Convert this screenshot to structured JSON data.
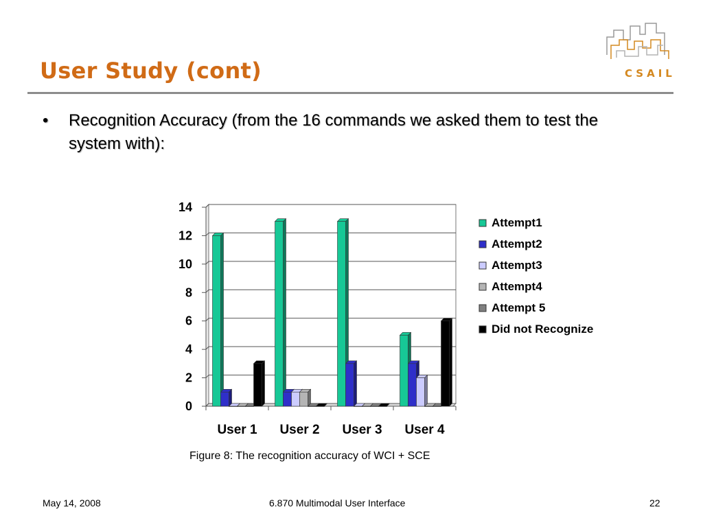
{
  "slide": {
    "title": "User Study (cont)",
    "bullet_marker": "•",
    "bullet_text": "Recognition Accuracy (from the 16 commands we asked them to test the system with):",
    "caption": "Figure 8: The recognition accuracy of WCI + SCE",
    "footer": {
      "date": "May 14, 2008",
      "course": "6.870 Multimodal User Interface",
      "page": "22"
    },
    "logo_text": "CSAIL"
  },
  "colors": {
    "title": "#d06b16",
    "logo": "#d4881f"
  },
  "chart_data": {
    "type": "bar",
    "categories": [
      "User 1",
      "User 2",
      "User 3",
      "User 4"
    ],
    "series": [
      {
        "name": "Attempt1",
        "values": [
          12,
          13,
          13,
          5
        ],
        "color": "#17c896"
      },
      {
        "name": "Attempt2",
        "values": [
          1,
          1,
          3,
          3
        ],
        "color": "#2f2fc9"
      },
      {
        "name": "Attempt3",
        "values": [
          0,
          1,
          0,
          2
        ],
        "color": "#ccccff"
      },
      {
        "name": "Attempt4",
        "values": [
          0,
          1,
          0,
          0
        ],
        "color": "#b5b5b5"
      },
      {
        "name": "Attempt 5",
        "values": [
          0,
          0,
          0,
          0
        ],
        "color": "#808080"
      },
      {
        "name": "Did not Recognize",
        "values": [
          3,
          0,
          0,
          6
        ],
        "color": "#000000"
      }
    ],
    "yticks": [
      "0",
      "2",
      "4",
      "6",
      "8",
      "10",
      "12",
      "14"
    ],
    "ylim": [
      0,
      14
    ],
    "grid": true,
    "legend": "right",
    "title": "",
    "xlabel": "",
    "ylabel": ""
  }
}
